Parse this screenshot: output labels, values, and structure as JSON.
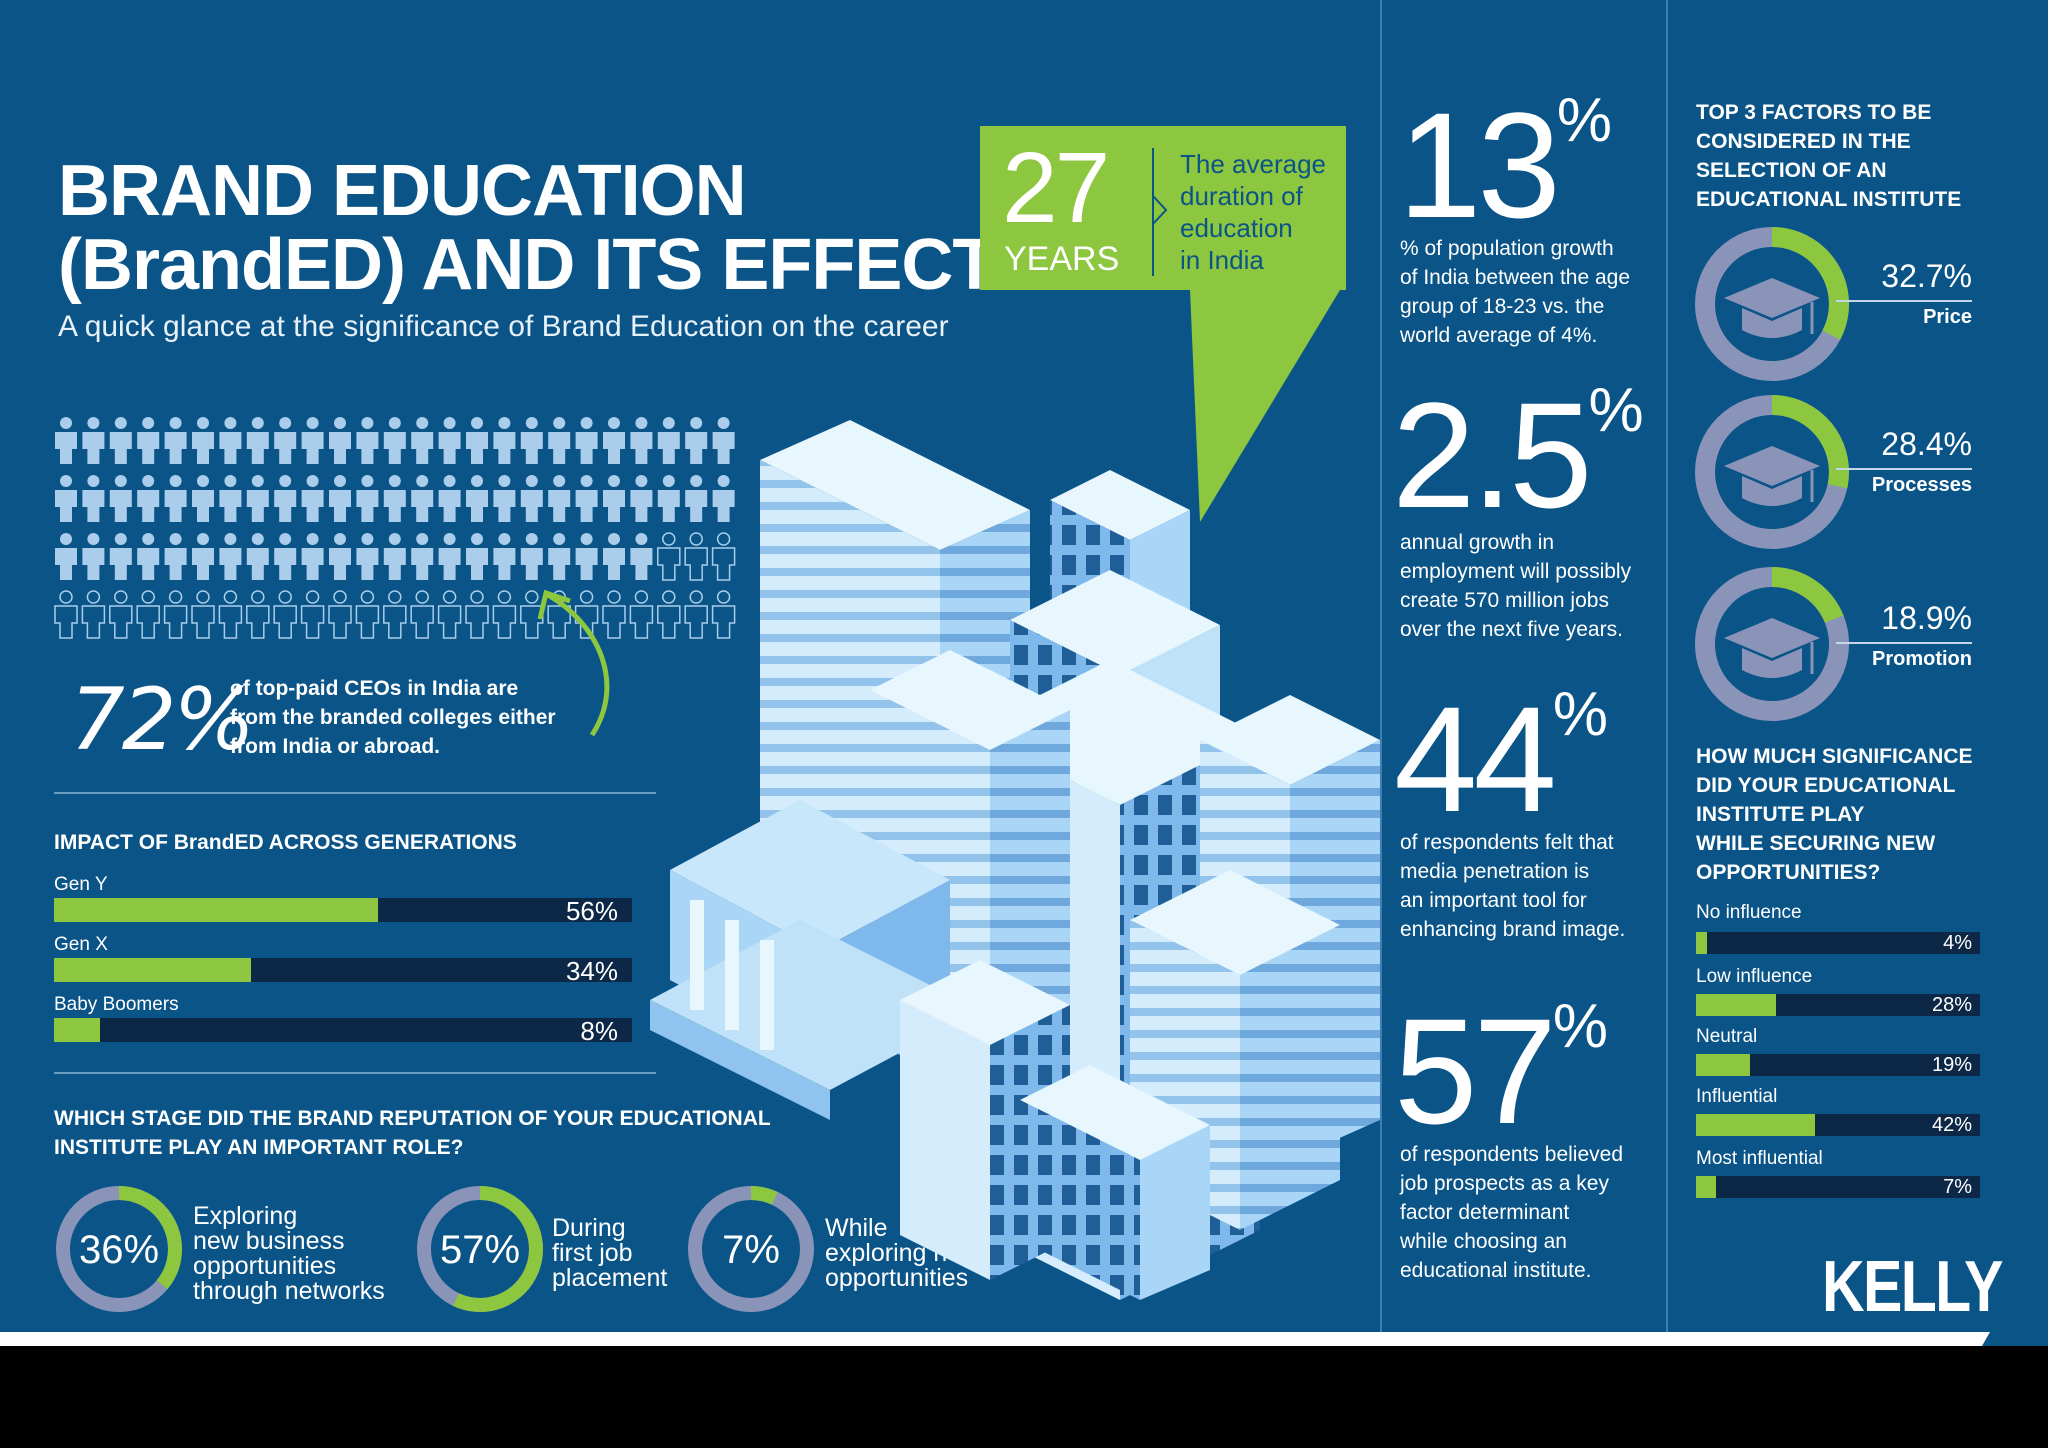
{
  "header": {
    "title_line1": "BRAND EDUCATION",
    "title_line2": "(BrandED) AND ITS EFFECTS",
    "subtitle": "A quick glance at the significance of Brand Education on the career"
  },
  "callout": {
    "number": "27",
    "unit": "YEARS",
    "text_line1": "The average",
    "text_line2": "duration of",
    "text_line3": "education",
    "text_line4": "in India"
  },
  "ceo_stat": {
    "value": "72%",
    "text_line1": "of top-paid CEOs in India are",
    "text_line2": "from the branded colleges either",
    "text_line3": "from India or abroad.",
    "figures_total": 100,
    "figures_highlight": 72
  },
  "generations": {
    "heading": "IMPACT OF BrandED ACROSS GENERATIONS",
    "items": [
      {
        "label": "Gen Y",
        "value": 56,
        "display": "56%"
      },
      {
        "label": "Gen X",
        "value": 34,
        "display": "34%"
      },
      {
        "label": "Baby Boomers",
        "value": 8,
        "display": "8%"
      }
    ]
  },
  "stage": {
    "heading_line1": "WHICH STAGE DID THE BRAND REPUTATION OF YOUR EDUCATIONAL",
    "heading_line2": "INSTITUTE PLAY AN IMPORTANT ROLE?",
    "items": [
      {
        "value": 36,
        "display": "36%",
        "line1": "Exploring",
        "line2": "new business",
        "line3": "opportunities",
        "line4": "through networks"
      },
      {
        "value": 57,
        "display": "57%",
        "line1": "During",
        "line2": "first job",
        "line3": "placement",
        "line4": ""
      },
      {
        "value": 7,
        "display": "7%",
        "line1": "While",
        "line2": "exploring new",
        "line3": "opportunities",
        "line4": ""
      }
    ]
  },
  "stats": [
    {
      "number": "13",
      "pct": "%",
      "line1": "% of population growth",
      "line2": "of India between the age",
      "line3": "group of 18-23  vs. the",
      "line4": "world average of 4%.",
      "line5": ""
    },
    {
      "number": "2.5",
      "pct": "%",
      "line1": "annual growth in",
      "line2": "employment will possibly",
      "line3": "create 570 million jobs",
      "line4": "over the next five years.",
      "line5": ""
    },
    {
      "number": "44",
      "pct": "%",
      "line1": "of respondents felt that",
      "line2": "media penetration is",
      "line3": "an important tool for",
      "line4": "enhancing brand image.",
      "line5": ""
    },
    {
      "number": "57",
      "pct": "%",
      "line1": "of respondents believed",
      "line2": "job prospects as a key",
      "line3": "factor determinant",
      "line4": "while choosing an",
      "line5": "educational institute."
    }
  ],
  "factors": {
    "heading_line1": "TOP 3 FACTORS TO BE",
    "heading_line2": "CONSIDERED IN THE",
    "heading_line3": "SELECTION OF AN",
    "heading_line4": "EDUCATIONAL INSTITUTE",
    "items": [
      {
        "value": 32.7,
        "display": "32.7%",
        "label": "Price"
      },
      {
        "value": 28.4,
        "display": "28.4%",
        "label": "Processes"
      },
      {
        "value": 18.9,
        "display": "18.9%",
        "label": "Promotion"
      }
    ]
  },
  "significance": {
    "heading_line1": "HOW MUCH SIGNIFICANCE",
    "heading_line2": "DID YOUR EDUCATIONAL",
    "heading_line3": "INSTITUTE PLAY",
    "heading_line4": "WHILE SECURING NEW",
    "heading_line5": "OPPORTUNITIES?",
    "items": [
      {
        "label": "No influence",
        "value": 4,
        "display": "4%"
      },
      {
        "label": "Low influence",
        "value": 28,
        "display": "28%"
      },
      {
        "label": "Neutral",
        "value": 19,
        "display": "19%"
      },
      {
        "label": "Influential",
        "value": 42,
        "display": "42%"
      },
      {
        "label": "Most influential",
        "value": 7,
        "display": "7%"
      }
    ]
  },
  "brand": {
    "logo": "KELLY"
  },
  "colors": {
    "background": "#0a5488",
    "accent": "#8dc63f",
    "bar_track": "#0d2747",
    "ring_track": "#8a94b8"
  }
}
